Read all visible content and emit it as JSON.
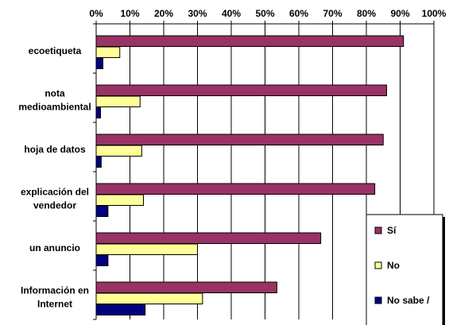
{
  "chart_data": {
    "type": "bar",
    "orientation": "horizontal",
    "title": "",
    "xlabel": "",
    "ylabel": "",
    "xlim": [
      0,
      100
    ],
    "x_tick_labels": [
      "0%",
      "10%",
      "20%",
      "30%",
      "40%",
      "50%",
      "60%",
      "70%",
      "80%",
      "90%",
      "100%"
    ],
    "x_axis_position": "top",
    "grid": true,
    "categories": [
      [
        "ecoetiqueta"
      ],
      [
        "nota",
        "medioambiental"
      ],
      [
        "hoja de datos"
      ],
      [
        "explicación del",
        "vendedor"
      ],
      [
        "un anuncio"
      ],
      [
        "Información en",
        "Internet"
      ]
    ],
    "series": [
      {
        "name": "Sí",
        "color": "#993366",
        "values": [
          91,
          86,
          85,
          82.5,
          66.5,
          53.5
        ]
      },
      {
        "name": "No",
        "color": "#FFFF99",
        "values": [
          7,
          13,
          13.5,
          14,
          30,
          31.5
        ]
      },
      {
        "name": "No sabe /",
        "color": "#000080",
        "values": [
          2,
          1.3,
          1.5,
          3.5,
          3.5,
          14.5
        ]
      }
    ],
    "legend_position": "bottom-right"
  }
}
